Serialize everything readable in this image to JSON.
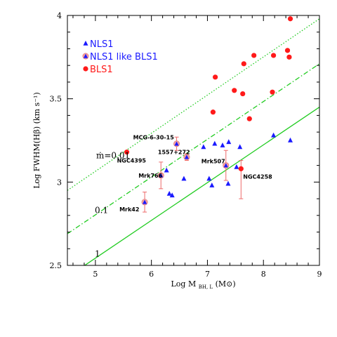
{
  "chart_data": {
    "type": "scatter",
    "xlabel_main": "Log M",
    "xlabel_sub": "BH, L",
    "xlabel_unit": "(M⊙)",
    "ylabel": "Log FWHM(Hβ) (km s⁻¹)",
    "xlim": [
      4.5,
      9
    ],
    "ylim": [
      2.5,
      4
    ],
    "xticks": [
      "5",
      "6",
      "7",
      "8",
      "9"
    ],
    "yticks": [
      "2.5",
      "3",
      "3.5",
      "4"
    ],
    "legend": [
      {
        "label": "NLS1",
        "color": "#1a1aff",
        "marker": "triangle"
      },
      {
        "label": "NLS1 like BLS1",
        "color": "#1a1aff",
        "marker": "triangle-circle"
      },
      {
        "label": "BLS1",
        "color": "#ff1a1a",
        "marker": "circle"
      }
    ],
    "series": [
      {
        "name": "NLS1",
        "color": "#1a1aff",
        "points": [
          [
            6.27,
            3.07
          ],
          [
            6.32,
            2.93
          ],
          [
            6.37,
            2.92
          ],
          [
            6.58,
            3.02
          ],
          [
            6.93,
            3.21
          ],
          [
            7.03,
            3.02
          ],
          [
            7.08,
            2.98
          ],
          [
            7.13,
            3.23
          ],
          [
            7.27,
            3.22
          ],
          [
            7.38,
            3.24
          ],
          [
            7.52,
            3.09
          ],
          [
            7.58,
            3.21
          ],
          [
            8.18,
            3.28
          ],
          [
            8.48,
            3.25
          ],
          [
            7.37,
            2.99
          ]
        ]
      },
      {
        "name": "NLS1 like BLS1",
        "color": "#1a1aff",
        "points": [
          {
            "x": 5.88,
            "y": 2.88,
            "err": 0.06
          },
          {
            "x": 6.17,
            "y": 3.04,
            "err": 0.08
          },
          {
            "x": 6.45,
            "y": 3.23,
            "err": 0.04
          },
          {
            "x": 6.63,
            "y": 3.15,
            "err": 0.02
          },
          {
            "x": 7.33,
            "y": 3.1,
            "err": 0.09
          }
        ]
      },
      {
        "name": "BLS1",
        "color": "#ff1a1a",
        "points": [
          {
            "x": 5.56,
            "y": 3.18
          },
          {
            "x": 7.1,
            "y": 3.42
          },
          {
            "x": 7.14,
            "y": 3.63
          },
          {
            "x": 7.48,
            "y": 3.55
          },
          {
            "x": 7.63,
            "y": 3.53
          },
          {
            "x": 7.65,
            "y": 3.71
          },
          {
            "x": 7.75,
            "y": 3.38
          },
          {
            "x": 7.83,
            "y": 3.76
          },
          {
            "x": 8.16,
            "y": 3.54
          },
          {
            "x": 8.18,
            "y": 3.76
          },
          {
            "x": 8.43,
            "y": 3.79
          },
          {
            "x": 8.46,
            "y": 3.75
          },
          {
            "x": 8.48,
            "y": 3.98
          },
          {
            "x": 7.6,
            "y": 3.08,
            "err_lo": 0.18,
            "err_hi": 0.05
          }
        ]
      }
    ],
    "lines": [
      {
        "label": "1",
        "style": "solid",
        "color": "#22cc22",
        "x": [
          4.5,
          9
        ],
        "y": [
          2.43,
          3.45
        ]
      },
      {
        "label": "0.1",
        "style": "dashdot",
        "color": "#22cc22",
        "x": [
          4.5,
          9
        ],
        "y": [
          2.69,
          3.71
        ]
      },
      {
        "label": "ṁ=0.01",
        "style": "dotted",
        "color": "#22cc22",
        "x": [
          4.5,
          9
        ],
        "y": [
          2.95,
          3.98
        ]
      }
    ],
    "annotations": [
      {
        "text": "MCG-6-30-15",
        "x": 6.45,
        "y": 3.23
      },
      {
        "text": "NGC4395",
        "x": 5.56,
        "y": 3.18
      },
      {
        "text": "1557+272",
        "x": 6.63,
        "y": 3.15
      },
      {
        "text": "Mrk766",
        "x": 6.17,
        "y": 3.04
      },
      {
        "text": "Mrk507",
        "x": 7.33,
        "y": 3.1
      },
      {
        "text": "NGC4258",
        "x": 7.6,
        "y": 3.08
      },
      {
        "text": "Mrk42",
        "x": 5.88,
        "y": 2.88
      }
    ]
  }
}
